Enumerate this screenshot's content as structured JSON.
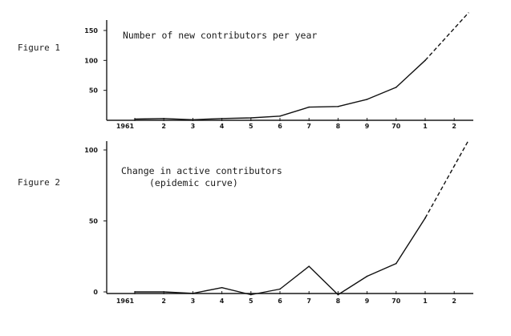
{
  "chart_data": [
    {
      "type": "line",
      "figure_label": "Figure 1",
      "title": "Number of new contributors per year",
      "subtitle": "",
      "xlabel": "",
      "ylabel": "",
      "x_ticks": [
        "1961",
        "2",
        "3",
        "4",
        "5",
        "6",
        "7",
        "8",
        "9",
        "70",
        "1",
        "2"
      ],
      "ylim": [
        0,
        150
      ],
      "y_ticks": [
        50,
        100,
        150
      ],
      "series": [
        {
          "x": [
            1961,
            1962,
            1963,
            1964,
            1965,
            1966,
            1967,
            1968,
            1969,
            1970,
            1971
          ],
          "values": [
            2,
            3,
            1,
            3,
            4,
            7,
            22,
            23,
            35,
            55,
            100
          ]
        }
      ],
      "projection": {
        "x": [
          1971,
          1972.5
        ],
        "values": [
          100,
          180
        ]
      },
      "grid": false
    },
    {
      "type": "line",
      "figure_label": "Figure 2",
      "title": "Change in active contributors",
      "subtitle": "(epidemic curve)",
      "xlabel": "",
      "ylabel": "",
      "x_ticks": [
        "1961",
        "2",
        "3",
        "4",
        "5",
        "6",
        "7",
        "8",
        "9",
        "70",
        "1",
        "2"
      ],
      "ylim": [
        0,
        100
      ],
      "y_ticks": [
        0,
        50,
        100
      ],
      "series": [
        {
          "x": [
            1961,
            1962,
            1963,
            1964,
            1965,
            1966,
            1967,
            1968,
            1969,
            1970,
            1971
          ],
          "values": [
            0,
            0,
            -1,
            3,
            -2,
            2,
            18,
            -2,
            11,
            20,
            52
          ]
        }
      ],
      "projection": {
        "x": [
          1971,
          1972.5
        ],
        "values": [
          52,
          107
        ]
      },
      "grid": false
    }
  ]
}
